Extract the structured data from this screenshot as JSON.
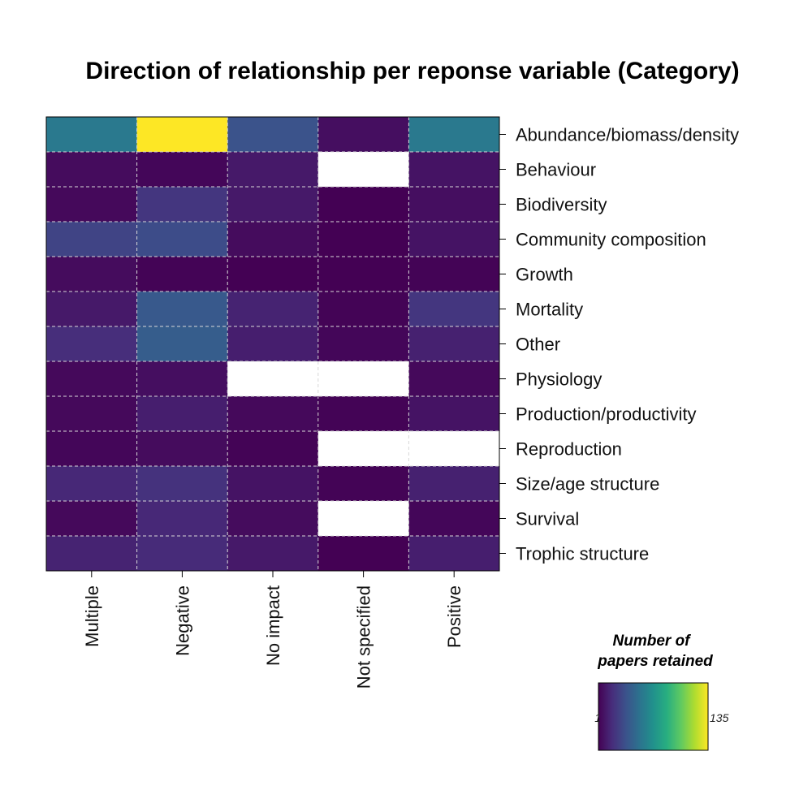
{
  "chart_data": {
    "type": "heatmap",
    "title": "Direction of relationship per reponse variable (Category)",
    "columns": [
      "Multiple",
      "Negative",
      "No impact",
      "Not specified",
      "Positive"
    ],
    "rows": [
      "Abundance/biomass/density",
      "Behaviour",
      "Biodiversity",
      "Community composition",
      "Growth",
      "Mortality",
      "Other",
      "Physiology",
      "Production/productivity",
      "Reproduction",
      "Size/age structure",
      "Survival",
      "Trophic structure"
    ],
    "values": [
      [
        55,
        135,
        35,
        6,
        55
      ],
      [
        5,
        3,
        10,
        null,
        8
      ],
      [
        4,
        22,
        10,
        1,
        6
      ],
      [
        28,
        32,
        5,
        1,
        8
      ],
      [
        5,
        2,
        1,
        1,
        2
      ],
      [
        10,
        38,
        14,
        2,
        22
      ],
      [
        18,
        40,
        12,
        3,
        13
      ],
      [
        4,
        6,
        null,
        null,
        4
      ],
      [
        4,
        12,
        4,
        2,
        8
      ],
      [
        3,
        5,
        2,
        null,
        null
      ],
      [
        16,
        20,
        8,
        2,
        13
      ],
      [
        4,
        16,
        5,
        null,
        3
      ],
      [
        14,
        17,
        10,
        1,
        12
      ]
    ],
    "colorscale": "viridis",
    "missing_color": "#ffffff",
    "grid": true,
    "grid_style": "dashed",
    "legend": {
      "title_line1": "Number of",
      "title_line2": "papers retained",
      "min_label": "1",
      "max_label": "135",
      "min": 1,
      "max": 135,
      "placement": "bottom-right"
    }
  }
}
